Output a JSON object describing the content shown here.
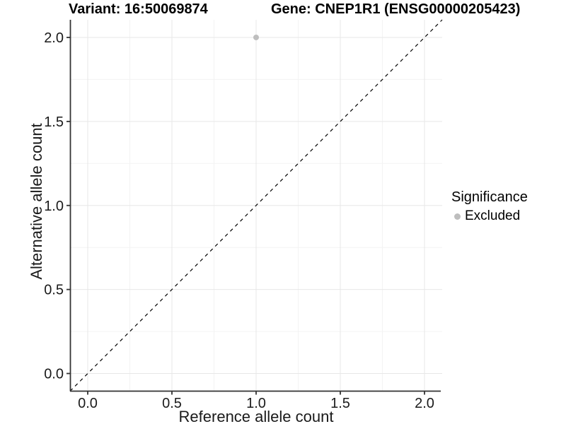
{
  "chart_data": {
    "type": "scatter",
    "title_left": "Variant: 16:50069874",
    "title_right": "Gene: CNEP1R1 (ENSG00000205423)",
    "xlabel": "Reference allele count",
    "ylabel": "Alternative allele count",
    "xlim": [
      -0.105,
      2.105
    ],
    "ylim": [
      -0.105,
      2.105
    ],
    "x_ticks": [
      0.0,
      0.5,
      1.0,
      1.5,
      2.0
    ],
    "x_tick_labels": [
      "0.0",
      "0.5",
      "1.0",
      "1.5",
      "2.0"
    ],
    "y_ticks": [
      0.0,
      0.5,
      1.0,
      1.5,
      2.0
    ],
    "y_tick_labels": [
      "0.0",
      "0.5",
      "1.0",
      "1.5",
      "2.0"
    ],
    "x_minor_ticks": [
      0.25,
      0.75,
      1.25,
      1.75
    ],
    "y_minor_ticks": [
      0.25,
      0.75,
      1.25,
      1.75
    ],
    "grid": true,
    "series": [
      {
        "name": "Excluded",
        "marker": "circle",
        "color": "#bebebe",
        "points": [
          {
            "x": 1.0,
            "y": 2.0
          }
        ]
      }
    ],
    "reference_line": {
      "type": "diagonal",
      "slope": 1,
      "intercept": 0,
      "style": "dashed",
      "color": "#000000"
    },
    "legend": {
      "title": "Significance",
      "position": "right",
      "entries": [
        {
          "label": "Excluded",
          "marker": "circle",
          "color": "#bebebe"
        }
      ]
    },
    "colors": {
      "background": "#ffffff",
      "major_grid": "#e7e7e7",
      "minor_grid": "#f3f3f3",
      "axis": "#333333",
      "tick_text": "#1a1a1a",
      "point": "#bebebe"
    }
  }
}
